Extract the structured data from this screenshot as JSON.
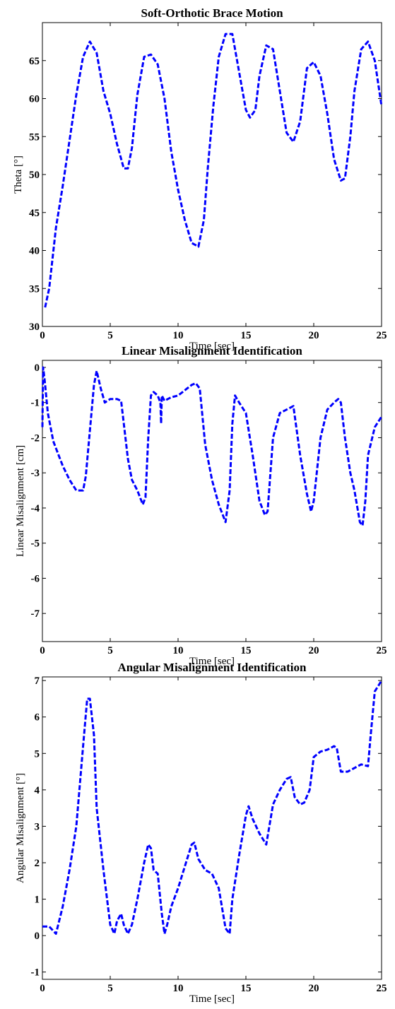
{
  "chart_data": [
    {
      "type": "line",
      "title": "Soft-Orthotic Brace Motion",
      "xlabel": "Time [sec]",
      "ylabel": "Theta [°]",
      "xlim": [
        0,
        25
      ],
      "ylim": [
        30,
        70
      ],
      "xticks": [
        0,
        5,
        10,
        15,
        20,
        25
      ],
      "yticks": [
        30,
        35,
        40,
        45,
        50,
        55,
        60,
        65
      ],
      "color": "#0000ff",
      "line_style": "dashed",
      "series": [
        {
          "x": [
            0.2,
            0.5,
            1.0,
            1.5,
            2.0,
            2.5,
            3.0,
            3.5,
            4.0,
            4.5,
            5.0,
            5.5,
            6.0,
            6.3,
            6.6,
            7.0,
            7.5,
            8.0,
            8.5,
            9.0,
            9.5,
            10.0,
            10.5,
            11.0,
            11.5,
            11.9,
            12.2,
            12.6,
            13.0,
            13.5,
            14.0,
            14.5,
            15.0,
            15.3,
            15.7,
            16.0,
            16.5,
            17.0,
            17.5,
            18.0,
            18.5,
            19.0,
            19.5,
            20.0,
            20.5,
            21.0,
            21.5,
            22.0,
            22.3,
            22.7,
            23.0,
            23.5,
            24.0,
            24.5,
            25.0
          ],
          "y": [
            32.5,
            35.0,
            43.0,
            48.5,
            54.5,
            60.5,
            65.5,
            67.5,
            66.0,
            61.0,
            58.0,
            54.0,
            50.8,
            50.8,
            53.5,
            60.5,
            65.5,
            65.8,
            64.5,
            60.0,
            53.0,
            48.0,
            44.0,
            41.0,
            40.5,
            44.0,
            51.0,
            59.0,
            65.5,
            68.5,
            68.5,
            63.5,
            58.5,
            57.5,
            58.5,
            63.0,
            67.0,
            66.5,
            61.0,
            55.5,
            54.3,
            57.0,
            64.0,
            64.8,
            63.0,
            58.0,
            52.0,
            49.2,
            49.5,
            55.0,
            61.0,
            66.5,
            67.5,
            65.0,
            59.0
          ]
        }
      ]
    },
    {
      "type": "line",
      "title": "Linear Misalignment Identification",
      "xlabel": "Time [sec]",
      "ylabel": "Linear Misalignment [cm]",
      "xlim": [
        0,
        25
      ],
      "ylim": [
        -7.8,
        0.2
      ],
      "xticks": [
        0,
        5,
        10,
        15,
        20,
        25
      ],
      "yticks": [
        0,
        -1,
        -2,
        -3,
        -4,
        -5,
        -6,
        -7
      ],
      "color": "#0000ff",
      "line_style": "dashed",
      "series": [
        {
          "x": [
            0.0,
            0.05,
            0.15,
            0.4,
            0.8,
            1.2,
            1.5,
            2.0,
            2.5,
            3.0,
            3.2,
            3.5,
            3.8,
            4.0,
            4.3,
            4.6,
            5.0,
            5.5,
            5.8,
            6.0,
            6.3,
            6.6,
            7.0,
            7.4,
            7.6,
            7.8,
            8.0,
            8.2,
            8.5,
            8.7,
            8.75,
            8.8,
            9.0,
            9.5,
            10.0,
            10.5,
            11.0,
            11.3,
            11.6,
            12.0,
            12.5,
            13.0,
            13.5,
            13.8,
            14.0,
            14.2,
            14.5,
            15.0,
            15.5,
            16.0,
            16.4,
            16.6,
            17.0,
            17.5,
            18.0,
            18.5,
            19.0,
            19.5,
            19.8,
            20.0,
            20.5,
            21.0,
            21.5,
            21.8,
            22.0,
            22.3,
            22.7,
            23.0,
            23.4,
            23.6,
            23.8,
            24.0,
            24.5,
            25.0
          ],
          "y": [
            -1.7,
            0.0,
            -0.3,
            -1.3,
            -2.1,
            -2.5,
            -2.8,
            -3.2,
            -3.5,
            -3.5,
            -3.1,
            -1.8,
            -0.5,
            -0.1,
            -0.6,
            -1.0,
            -0.9,
            -0.9,
            -0.95,
            -1.6,
            -2.6,
            -3.2,
            -3.5,
            -3.9,
            -3.7,
            -2.0,
            -0.8,
            -0.7,
            -0.8,
            -1.0,
            -1.6,
            -0.8,
            -0.95,
            -0.85,
            -0.8,
            -0.65,
            -0.5,
            -0.45,
            -0.6,
            -2.2,
            -3.2,
            -3.9,
            -4.4,
            -3.5,
            -1.6,
            -0.8,
            -1.0,
            -1.3,
            -2.5,
            -3.8,
            -4.2,
            -4.1,
            -2.0,
            -1.3,
            -1.2,
            -1.1,
            -2.5,
            -3.6,
            -4.1,
            -3.8,
            -2.0,
            -1.2,
            -1.0,
            -0.9,
            -1.0,
            -2.0,
            -3.0,
            -3.5,
            -4.4,
            -4.5,
            -3.8,
            -2.5,
            -1.7,
            -1.4
          ]
        }
      ]
    },
    {
      "type": "line",
      "title": "Angular Misalignment Identification",
      "xlabel": "Time [sec]",
      "ylabel": "Angular Misalignment  [°]",
      "xlim": [
        0,
        25
      ],
      "ylim": [
        -1.2,
        7.1
      ],
      "xticks": [
        0,
        5,
        10,
        15,
        20,
        25
      ],
      "yticks": [
        -1,
        0,
        1,
        2,
        3,
        4,
        5,
        6,
        7
      ],
      "color": "#0000ff",
      "line_style": "dashed",
      "series": [
        {
          "x": [
            0.0,
            0.5,
            1.0,
            1.5,
            2.0,
            2.5,
            3.0,
            3.3,
            3.5,
            3.8,
            4.0,
            4.5,
            5.0,
            5.3,
            5.5,
            5.8,
            6.0,
            6.3,
            6.6,
            7.0,
            7.5,
            7.8,
            8.0,
            8.2,
            8.5,
            8.8,
            9.0,
            9.2,
            9.5,
            10.0,
            10.5,
            11.0,
            11.2,
            11.5,
            12.0,
            12.5,
            13.0,
            13.5,
            13.8,
            14.0,
            14.5,
            15.0,
            15.2,
            15.5,
            16.0,
            16.5,
            17.0,
            17.5,
            18.0,
            18.3,
            18.6,
            19.0,
            19.3,
            19.7,
            20.0,
            20.5,
            21.0,
            21.5,
            21.7,
            22.0,
            22.5,
            23.0,
            23.5,
            24.0,
            24.2,
            24.5,
            25.0
          ],
          "y": [
            0.25,
            0.25,
            0.05,
            0.8,
            1.8,
            3.0,
            5.2,
            6.5,
            6.5,
            5.5,
            3.5,
            1.8,
            0.3,
            0.05,
            0.4,
            0.6,
            0.3,
            0.05,
            0.3,
            1.0,
            2.0,
            2.5,
            2.4,
            1.8,
            1.7,
            0.6,
            0.05,
            0.3,
            0.8,
            1.3,
            1.9,
            2.5,
            2.55,
            2.1,
            1.8,
            1.7,
            1.3,
            0.2,
            0.05,
            1.0,
            2.2,
            3.3,
            3.55,
            3.2,
            2.8,
            2.5,
            3.6,
            4.0,
            4.3,
            4.35,
            3.8,
            3.6,
            3.65,
            4.0,
            4.9,
            5.05,
            5.1,
            5.2,
            5.15,
            4.5,
            4.5,
            4.6,
            4.7,
            4.65,
            5.5,
            6.7,
            7.0
          ]
        }
      ]
    }
  ]
}
